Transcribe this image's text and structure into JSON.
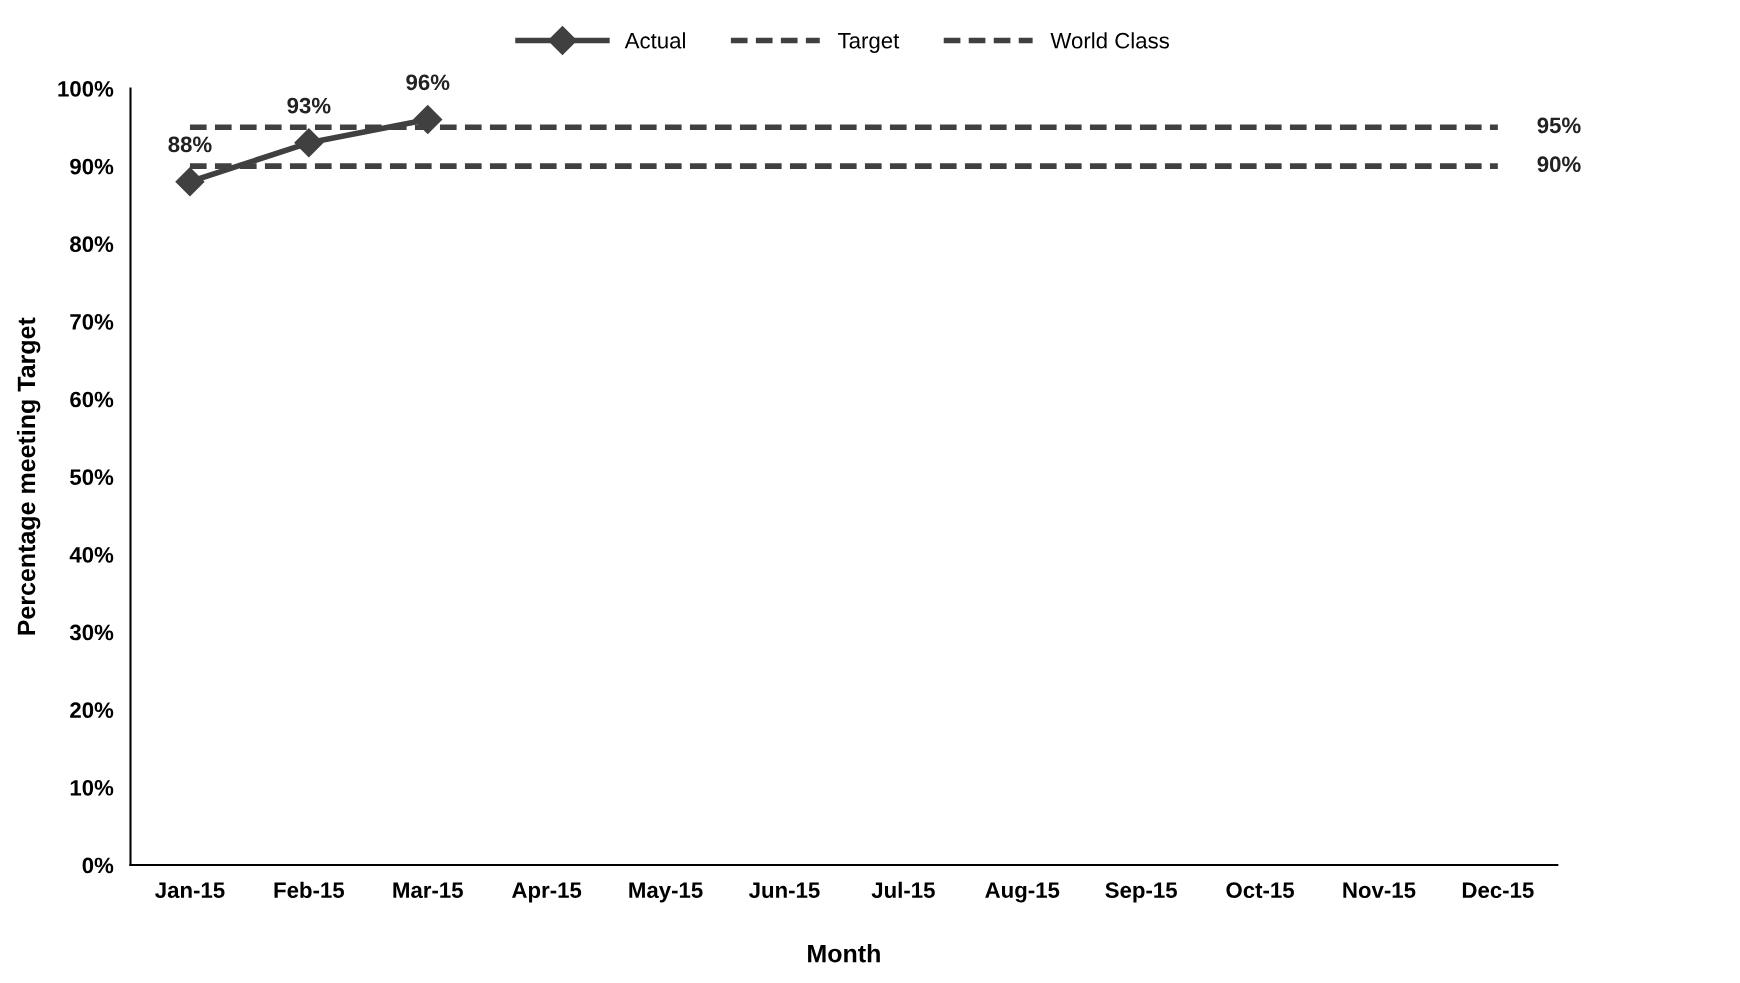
{
  "chart_data": {
    "type": "line",
    "xlabel": "Month",
    "ylabel": "Percentage meeting Target",
    "categories": [
      "Jan-15",
      "Feb-15",
      "Mar-15",
      "Apr-15",
      "May-15",
      "Jun-15",
      "Jul-15",
      "Aug-15",
      "Sep-15",
      "Oct-15",
      "Nov-15",
      "Dec-15"
    ],
    "series": [
      {
        "name": "Actual",
        "color": "#404040",
        "marker": "diamond",
        "line_style": "solid",
        "values": [
          88,
          93,
          96,
          null,
          null,
          null,
          null,
          null,
          null,
          null,
          null,
          null
        ],
        "value_labels": [
          "88%",
          "93%",
          "96%",
          null,
          null,
          null,
          null,
          null,
          null,
          null,
          null,
          null
        ]
      },
      {
        "name": "Target",
        "color": "#404040",
        "marker": "none",
        "line_style": "dashed",
        "values": [
          90,
          90,
          90,
          90,
          90,
          90,
          90,
          90,
          90,
          90,
          90,
          90
        ],
        "value_labels": [
          null,
          null,
          null,
          null,
          null,
          null,
          null,
          null,
          null,
          null,
          null,
          "90%"
        ]
      },
      {
        "name": "World Class",
        "color": "#404040",
        "marker": "none",
        "line_style": "dashed",
        "values": [
          95,
          95,
          95,
          95,
          95,
          95,
          95,
          95,
          95,
          95,
          95,
          95
        ],
        "value_labels": [
          null,
          null,
          null,
          null,
          null,
          null,
          null,
          null,
          null,
          null,
          null,
          "95%"
        ]
      }
    ],
    "ylim": [
      0,
      100
    ],
    "yticks": [
      {
        "value": 0,
        "label": "0%"
      },
      {
        "value": 10,
        "label": "10%"
      },
      {
        "value": 20,
        "label": "20%"
      },
      {
        "value": 30,
        "label": "30%"
      },
      {
        "value": 40,
        "label": "40%"
      },
      {
        "value": 50,
        "label": "50%"
      },
      {
        "value": 60,
        "label": "60%"
      },
      {
        "value": 70,
        "label": "70%"
      },
      {
        "value": 80,
        "label": "80%"
      },
      {
        "value": 90,
        "label": "90%"
      },
      {
        "value": 100,
        "label": "100%"
      }
    ],
    "grid": false,
    "legend": "top"
  }
}
